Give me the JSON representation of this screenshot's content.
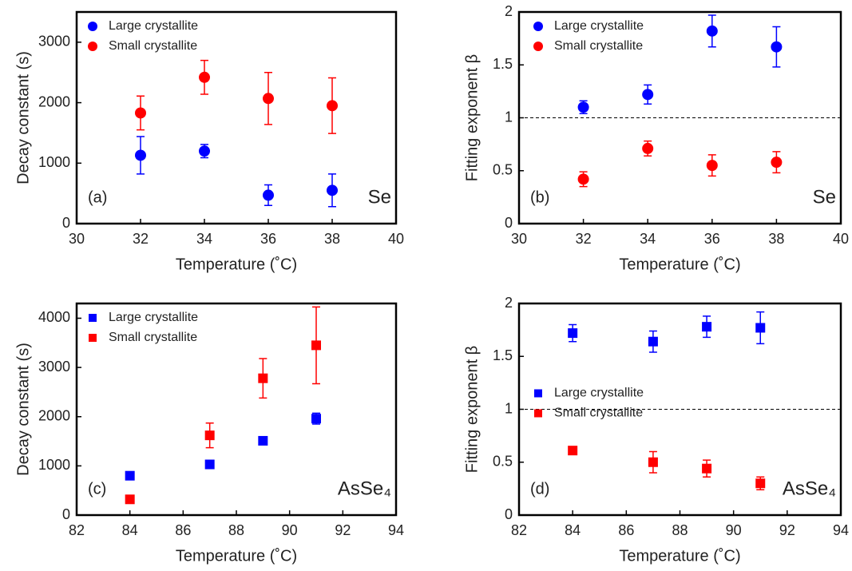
{
  "chart_data": [
    {
      "type": "scatter",
      "marker": "circle",
      "ylabel": "Decay constant (s)",
      "xlabel": "Temperature (˚C)",
      "panel_label": "(a)",
      "material": "Se",
      "xlim": [
        30,
        40
      ],
      "xticks": [
        30,
        32,
        34,
        36,
        38,
        40
      ],
      "ylim": [
        0,
        3500
      ],
      "yticks": [
        0,
        1000,
        2000,
        3000
      ],
      "legend_loc": "upper left",
      "x": [
        32,
        34,
        36,
        38
      ],
      "series": [
        {
          "name": "Large crystallite",
          "color": "#0000ff",
          "values": [
            1130,
            1200,
            470,
            550
          ],
          "errors": [
            310,
            110,
            170,
            270
          ]
        },
        {
          "name": "Small crystallite",
          "color": "#ff0000",
          "values": [
            1830,
            2420,
            2070,
            1950
          ],
          "errors": [
            280,
            280,
            430,
            460
          ]
        }
      ]
    },
    {
      "type": "scatter",
      "marker": "circle",
      "ylabel": "Fitting exponent  β",
      "xlabel": "Temperature (˚C)",
      "panel_label": "(b)",
      "material": "Se",
      "xlim": [
        30,
        40
      ],
      "xticks": [
        30,
        32,
        34,
        36,
        38,
        40
      ],
      "ylim": [
        0,
        2
      ],
      "yticks": [
        0,
        0.5,
        1,
        1.5,
        2
      ],
      "reference_line": 1,
      "legend_loc": "upper left",
      "x": [
        32,
        34,
        36,
        38
      ],
      "series": [
        {
          "name": "Large crystallite",
          "color": "#0000ff",
          "values": [
            1.1,
            1.22,
            1.82,
            1.67
          ],
          "errors": [
            0.06,
            0.09,
            0.15,
            0.19
          ]
        },
        {
          "name": "Small crystallite",
          "color": "#ff0000",
          "values": [
            0.42,
            0.71,
            0.55,
            0.58
          ],
          "errors": [
            0.07,
            0.07,
            0.1,
            0.1
          ]
        }
      ]
    },
    {
      "type": "scatter",
      "marker": "square",
      "ylabel": "Decay constant (s)",
      "xlabel": "Temperature (˚C)",
      "panel_label": "(c)",
      "material": "AsSe₄",
      "xlim": [
        82,
        94
      ],
      "xticks": [
        82,
        84,
        86,
        88,
        90,
        92,
        94
      ],
      "ylim": [
        0,
        4300
      ],
      "yticks": [
        0,
        1000,
        2000,
        3000,
        4000
      ],
      "legend_loc": "upper left",
      "x": [
        84,
        87,
        89,
        91
      ],
      "series": [
        {
          "name": "Large crystallite",
          "color": "#0000ff",
          "values": [
            800,
            1030,
            1510,
            1960
          ],
          "errors": [
            null,
            null,
            null,
            110
          ]
        },
        {
          "name": "Small crystallite",
          "color": "#ff0000",
          "values": [
            320,
            1620,
            2780,
            3450
          ],
          "errors": [
            null,
            250,
            400,
            780
          ]
        }
      ]
    },
    {
      "type": "scatter",
      "marker": "square",
      "ylabel": "Fitting exponent  β",
      "xlabel": "Temperature (˚C)",
      "panel_label": "(d)",
      "material": "AsSe₄",
      "xlim": [
        82,
        94
      ],
      "xticks": [
        82,
        84,
        86,
        88,
        90,
        92,
        94
      ],
      "ylim": [
        0,
        2
      ],
      "yticks": [
        0,
        0.5,
        1,
        1.5,
        2
      ],
      "reference_line": 1,
      "legend_loc": "center left",
      "x": [
        84,
        87,
        89,
        91
      ],
      "series": [
        {
          "name": "Large crystallite",
          "color": "#0000ff",
          "values": [
            1.72,
            1.64,
            1.78,
            1.77
          ],
          "errors": [
            0.08,
            0.1,
            0.1,
            0.15
          ]
        },
        {
          "name": "Small crystallite",
          "color": "#ff0000",
          "values": [
            0.61,
            0.5,
            0.44,
            0.3
          ],
          "errors": [
            null,
            0.1,
            0.08,
            0.06
          ]
        }
      ]
    }
  ]
}
